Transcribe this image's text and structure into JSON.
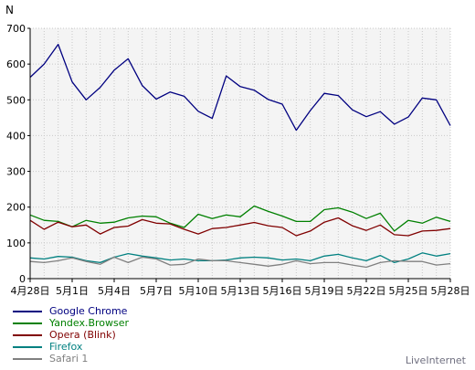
{
  "chart_data": {
    "type": "line",
    "ylabel": "N",
    "ylim": [
      0,
      700
    ],
    "yticks": [
      0,
      100,
      200,
      300,
      400,
      500,
      600,
      700
    ],
    "grid": true,
    "legend_position": "bottom-left",
    "x_tick_labels": [
      "4月28日",
      "5月1日",
      "5月4日",
      "5月7日",
      "5月10日",
      "5月13日",
      "5月16日",
      "5月19日",
      "5月22日",
      "5月25日",
      "5月28日"
    ],
    "x": [
      "4/28",
      "4/29",
      "4/30",
      "5/1",
      "5/2",
      "5/3",
      "5/4",
      "5/5",
      "5/6",
      "5/7",
      "5/8",
      "5/9",
      "5/10",
      "5/11",
      "5/12",
      "5/13",
      "5/14",
      "5/15",
      "5/16",
      "5/17",
      "5/18",
      "5/19",
      "5/20",
      "5/21",
      "5/22",
      "5/23",
      "5/24",
      "5/25",
      "5/26",
      "5/27",
      "5/28"
    ],
    "series": [
      {
        "name": "Google Chrome",
        "color": "#000080",
        "values": [
          563,
          600,
          655,
          550,
          500,
          535,
          583,
          615,
          540,
          502,
          522,
          510,
          468,
          448,
          567,
          537,
          527,
          501,
          488,
          415,
          470,
          518,
          512,
          472,
          453,
          467,
          432,
          452,
          505,
          500,
          428
        ]
      },
      {
        "name": "Yandex.Browser",
        "color": "#008000",
        "values": [
          178,
          163,
          160,
          145,
          163,
          155,
          158,
          170,
          175,
          173,
          155,
          143,
          180,
          168,
          178,
          173,
          203,
          188,
          175,
          160,
          160,
          193,
          198,
          186,
          168,
          183,
          133,
          163,
          155,
          172,
          160
        ]
      },
      {
        "name": "Opera (Blink)",
        "color": "#800000",
        "values": [
          163,
          138,
          158,
          145,
          150,
          125,
          143,
          147,
          165,
          155,
          153,
          138,
          125,
          140,
          143,
          150,
          157,
          148,
          143,
          120,
          133,
          158,
          170,
          148,
          135,
          150,
          123,
          120,
          133,
          135,
          140
        ]
      },
      {
        "name": "Firefox",
        "color": "#008080",
        "values": [
          58,
          55,
          62,
          60,
          50,
          45,
          60,
          70,
          63,
          58,
          52,
          55,
          50,
          50,
          52,
          58,
          60,
          58,
          52,
          55,
          50,
          63,
          68,
          58,
          50,
          65,
          45,
          55,
          72,
          63,
          70
        ]
      },
      {
        "name": "Safari 1",
        "color": "#808080",
        "values": [
          48,
          45,
          50,
          58,
          48,
          40,
          60,
          45,
          60,
          55,
          38,
          40,
          55,
          50,
          50,
          45,
          40,
          35,
          40,
          50,
          42,
          45,
          45,
          38,
          32,
          45,
          50,
          48,
          48,
          38,
          42
        ]
      }
    ]
  },
  "source_label": "LiveInternet"
}
